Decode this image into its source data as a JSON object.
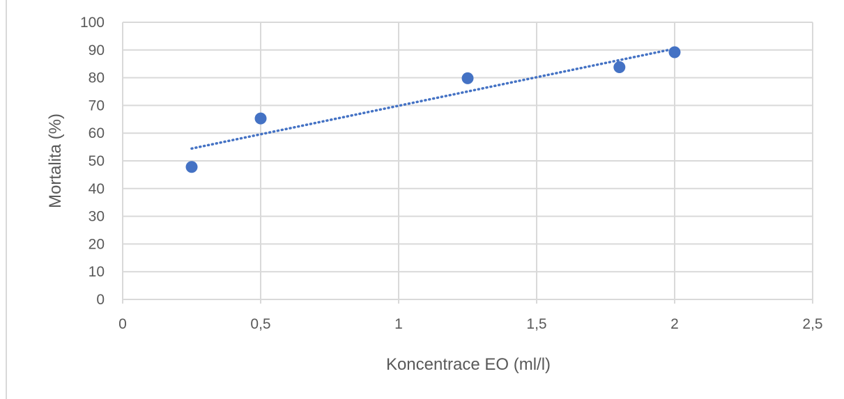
{
  "chart_data": {
    "type": "scatter",
    "title": "",
    "xlabel": "Koncentrace EO (ml/l)",
    "ylabel": "Mortalita (%)",
    "xlim": [
      0,
      2.5
    ],
    "ylim": [
      0,
      100
    ],
    "x_ticks": [
      0,
      0.5,
      1,
      1.5,
      2,
      2.5
    ],
    "x_tick_labels": [
      "0",
      "0,5",
      "1",
      "1,5",
      "2",
      "2,5"
    ],
    "y_ticks": [
      0,
      10,
      20,
      30,
      40,
      50,
      60,
      70,
      80,
      90,
      100
    ],
    "y_tick_labels": [
      "0",
      "10",
      "20",
      "30",
      "40",
      "50",
      "60",
      "70",
      "80",
      "90",
      "100"
    ],
    "grid": true,
    "legend": "none",
    "series": [
      {
        "x": [
          0.25,
          0.5,
          1.25,
          1.8,
          2.0
        ],
        "y": [
          47.8,
          65.3,
          79.8,
          83.8,
          89.2
        ],
        "color": "#4472c4",
        "marker": "circle"
      }
    ],
    "trendline": {
      "type": "linear",
      "style": "dotted",
      "color": "#4472c4",
      "x_range": [
        0.25,
        2.0
      ]
    }
  }
}
